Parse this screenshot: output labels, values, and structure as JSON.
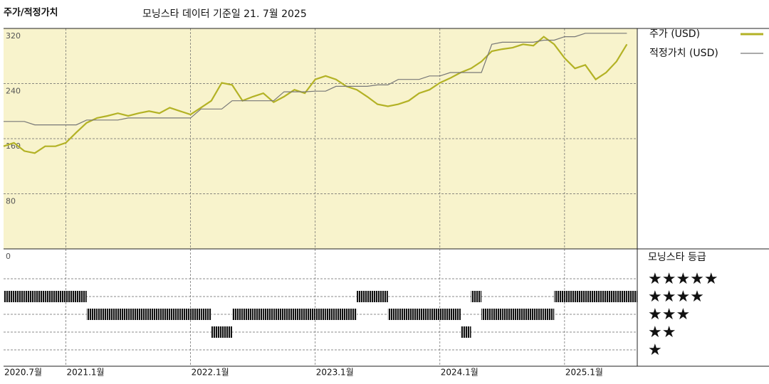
{
  "chart_data": [
    {
      "type": "line",
      "title": "주가/적정가치",
      "subtitle": "모닝스타 데이터 기준일 21. 7월 2025",
      "x": [
        "2020-07",
        "2020-08",
        "2020-09",
        "2020-10",
        "2020-11",
        "2020-12",
        "2021-01",
        "2021-02",
        "2021-03",
        "2021-04",
        "2021-05",
        "2021-06",
        "2021-07",
        "2021-08",
        "2021-09",
        "2021-10",
        "2021-11",
        "2021-12",
        "2022-01",
        "2022-02",
        "2022-03",
        "2022-04",
        "2022-05",
        "2022-06",
        "2022-07",
        "2022-08",
        "2022-09",
        "2022-10",
        "2022-11",
        "2022-12",
        "2023-01",
        "2023-02",
        "2023-03",
        "2023-04",
        "2023-05",
        "2023-06",
        "2023-07",
        "2023-08",
        "2023-09",
        "2023-10",
        "2023-11",
        "2023-12",
        "2024-01",
        "2024-02",
        "2024-03",
        "2024-04",
        "2024-05",
        "2024-06",
        "2024-07",
        "2024-08",
        "2024-09",
        "2024-10",
        "2024-11",
        "2024-12",
        "2025-01",
        "2025-02",
        "2025-03",
        "2025-04",
        "2025-05",
        "2025-06",
        "2025-07"
      ],
      "series": [
        {
          "name": "주가 (USD)",
          "color": "#b3b225",
          "values": [
            149,
            154,
            142,
            139,
            149,
            149,
            154,
            169,
            183,
            190,
            193,
            197,
            193,
            197,
            200,
            197,
            205,
            200,
            195,
            205,
            215,
            241,
            238,
            215,
            221,
            226,
            213,
            221,
            231,
            226,
            246,
            251,
            246,
            236,
            231,
            221,
            210,
            207,
            210,
            215,
            226,
            231,
            241,
            248,
            256,
            262,
            272,
            287,
            290,
            292,
            297,
            295,
            308,
            297,
            277,
            262,
            267,
            246,
            256,
            272,
            297
          ]
        },
        {
          "name": "적정가치 (USD)",
          "color": "#777777",
          "values": [
            185,
            185,
            185,
            180,
            180,
            180,
            180,
            180,
            187,
            187,
            187,
            187,
            190,
            190,
            190,
            190,
            190,
            190,
            190,
            203,
            203,
            203,
            215,
            215,
            215,
            215,
            215,
            228,
            228,
            228,
            229,
            229,
            236,
            236,
            236,
            236,
            238,
            238,
            246,
            246,
            246,
            251,
            251,
            256,
            256,
            256,
            256,
            297,
            300,
            300,
            300,
            300,
            303,
            303,
            308,
            308,
            313,
            313,
            313,
            313,
            313
          ]
        }
      ],
      "xlim": [
        "2020-07",
        "2025-08"
      ],
      "ylim": [
        0,
        320
      ],
      "yticks": [
        0,
        80,
        160,
        240,
        320
      ],
      "grid": true
    },
    {
      "type": "rating",
      "title": "모닝스타 등급",
      "x": [
        "2020-07",
        "2020-08",
        "2020-09",
        "2020-10",
        "2020-11",
        "2020-12",
        "2021-01",
        "2021-02",
        "2021-03",
        "2021-04",
        "2021-05",
        "2021-06",
        "2021-07",
        "2021-08",
        "2021-09",
        "2021-10",
        "2021-11",
        "2021-12",
        "2022-01",
        "2022-02",
        "2022-03",
        "2022-04",
        "2022-05",
        "2022-06",
        "2022-07",
        "2022-08",
        "2022-09",
        "2022-10",
        "2022-11",
        "2022-12",
        "2023-01",
        "2023-02",
        "2023-03",
        "2023-04",
        "2023-05",
        "2023-06",
        "2023-07",
        "2023-08",
        "2023-09",
        "2023-10",
        "2023-11",
        "2023-12",
        "2024-01",
        "2024-02",
        "2024-03",
        "2024-04",
        "2024-05",
        "2024-06",
        "2024-07",
        "2024-08",
        "2024-09",
        "2024-10",
        "2024-11",
        "2024-12",
        "2025-01",
        "2025-02",
        "2025-03",
        "2025-04",
        "2025-05",
        "2025-06",
        "2025-07"
      ],
      "values": [
        4,
        4,
        4,
        4,
        4,
        4,
        4,
        4,
        3,
        3,
        3,
        3,
        3,
        3,
        3,
        3,
        3,
        3,
        3,
        3,
        2,
        2,
        3,
        3,
        3,
        3,
        3,
        3,
        3,
        3,
        3,
        3,
        3,
        3,
        4,
        4,
        4,
        3,
        3,
        3,
        3,
        3,
        3,
        3,
        2,
        4,
        3,
        3,
        3,
        3,
        3,
        3,
        3,
        4,
        4,
        4,
        4,
        4,
        4,
        4,
        4
      ],
      "color": "#111111",
      "xlim": [
        "2020-07",
        "2025-08"
      ],
      "xticks": [
        {
          "value": "2020-07",
          "label": "2020.7월"
        },
        {
          "value": "2021-01",
          "label": "2021.1월"
        },
        {
          "value": "2022-01",
          "label": "2022.1월"
        },
        {
          "value": "2023-01",
          "label": "2023.1월"
        },
        {
          "value": "2024-01",
          "label": "2024.1월"
        },
        {
          "value": "2025-01",
          "label": "2025.1월"
        }
      ],
      "ylim": [
        1,
        5
      ],
      "yticks": [
        {
          "value": 5,
          "label": "★★★★★"
        },
        {
          "value": 4,
          "label": "★★★★"
        },
        {
          "value": 3,
          "label": "★★★"
        },
        {
          "value": 2,
          "label": "★★"
        },
        {
          "value": 1,
          "label": "★"
        }
      ]
    }
  ]
}
